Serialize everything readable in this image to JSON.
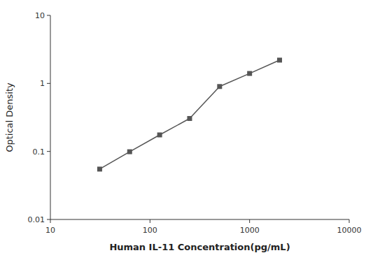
{
  "chart_data": {
    "type": "line",
    "x": [
      31.25,
      62.5,
      125,
      250,
      500,
      1000,
      2000
    ],
    "values": [
      0.055,
      0.099,
      0.175,
      0.305,
      0.9,
      1.4,
      2.2
    ],
    "color": "#555555",
    "marker": "square",
    "xlabel": "Human IL-11 Concentration(pg/mL)",
    "ylabel": "Optical Density",
    "xlim": [
      10,
      10000
    ],
    "ylim": [
      0.01,
      10
    ],
    "xticks": [
      10,
      100,
      1000,
      10000
    ],
    "yticks": [
      0.01,
      0.1,
      1,
      10
    ],
    "log": true,
    "grid": false
  }
}
